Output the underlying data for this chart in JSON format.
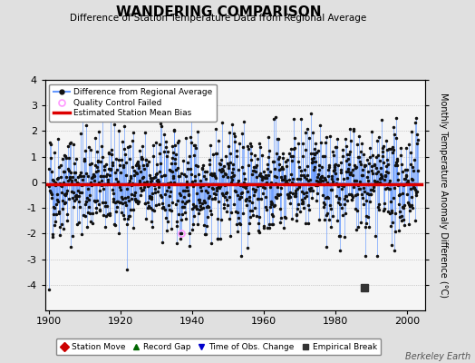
{
  "title": "WANDERING COMPARISON",
  "subtitle": "Difference of Station Temperature Data from Regional Average",
  "ylabel": "Monthly Temperature Anomaly Difference (°C)",
  "xlabel_ticks": [
    1900,
    1920,
    1940,
    1960,
    1980,
    2000
  ],
  "ylim": [
    -5,
    4
  ],
  "yticks": [
    -4,
    -3,
    -2,
    -1,
    0,
    1,
    2,
    3,
    4
  ],
  "xlim": [
    1899,
    2005
  ],
  "year_start": 1900,
  "year_end": 2003,
  "bias_value": -0.08,
  "background_color": "#e0e0e0",
  "plot_bg_color": "#f5f5f5",
  "line_color": "#6699ff",
  "dot_color": "#111111",
  "bias_color": "#dd0000",
  "qc_color": "#ff99ff",
  "watermark": "Berkeley Earth",
  "legend_entries": [
    "Difference from Regional Average",
    "Quality Control Failed",
    "Estimated Station Mean Bias"
  ],
  "bottom_legend": [
    {
      "label": "Station Move",
      "color": "#cc0000",
      "marker": "D"
    },
    {
      "label": "Record Gap",
      "color": "#006600",
      "marker": "^"
    },
    {
      "label": "Time of Obs. Change",
      "color": "#0000cc",
      "marker": "v"
    },
    {
      "label": "Empirical Break",
      "color": "#333333",
      "marker": "s"
    }
  ],
  "seed": 42,
  "n_points": 1240,
  "qc_x": 1937,
  "qc_y": -2.0,
  "long_stem_x": 1900.2,
  "long_stem_y": -4.2,
  "empirical_break_x": 1988,
  "empirical_break_y": -4.1
}
